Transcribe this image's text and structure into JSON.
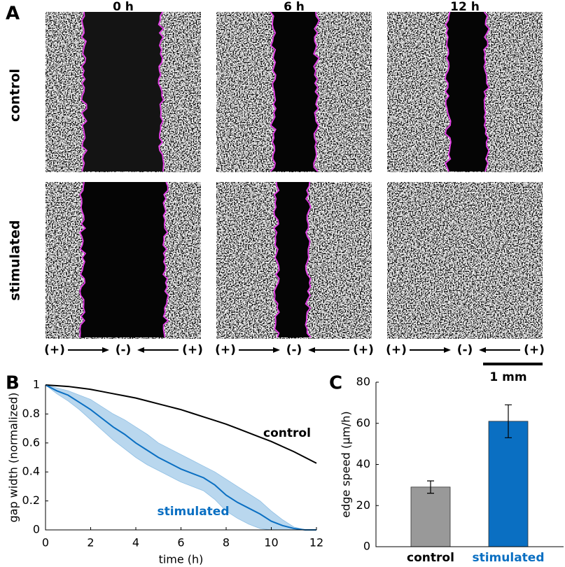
{
  "panel_labels": [
    "A",
    "B",
    "C"
  ],
  "panel_a": {
    "columns": [
      "0 h",
      "6 h",
      "12 h"
    ],
    "rows": [
      "control",
      "stimulated"
    ],
    "arrow_labels": [
      "(+)",
      "(-)",
      "(+)"
    ],
    "scale_bar": "1 mm"
  },
  "chart_data": [
    {
      "type": "line",
      "xlabel": "time (h)",
      "ylabel": "gap width (normalized)",
      "x": [
        0,
        0.5,
        1,
        1.5,
        2,
        2.5,
        3,
        3.5,
        4,
        4.5,
        5,
        5.5,
        6,
        6.5,
        7,
        7.5,
        8,
        8.5,
        9,
        9.5,
        10,
        10.5,
        11,
        11.5,
        12
      ],
      "xlim": [
        0,
        12
      ],
      "xticks": [
        0,
        2,
        4,
        6,
        8,
        10,
        12
      ],
      "ylim": [
        0,
        1
      ],
      "yticks": [
        0,
        0.2,
        0.4,
        0.6,
        0.8,
        1
      ],
      "series": [
        {
          "name": "control",
          "color": "#000000",
          "values": [
            1,
            0.995,
            0.99,
            0.98,
            0.97,
            0.955,
            0.94,
            0.925,
            0.91,
            0.89,
            0.87,
            0.85,
            0.83,
            0.805,
            0.78,
            0.755,
            0.73,
            0.7,
            0.67,
            0.64,
            0.61,
            0.575,
            0.54,
            0.5,
            0.46
          ]
        },
        {
          "name": "stimulated",
          "color": "#0a6fc2",
          "band_color": "#b9d7ee",
          "values": [
            1,
            0.96,
            0.93,
            0.88,
            0.83,
            0.77,
            0.71,
            0.66,
            0.6,
            0.55,
            0.5,
            0.46,
            0.42,
            0.39,
            0.36,
            0.31,
            0.24,
            0.19,
            0.15,
            0.11,
            0.06,
            0.03,
            0.01,
            0,
            0
          ],
          "lower": [
            1,
            0.94,
            0.89,
            0.83,
            0.76,
            0.69,
            0.62,
            0.56,
            0.5,
            0.45,
            0.41,
            0.37,
            0.33,
            0.3,
            0.27,
            0.21,
            0.13,
            0.08,
            0.04,
            0.01,
            0,
            0,
            0,
            0,
            0
          ],
          "upper": [
            1,
            0.98,
            0.96,
            0.93,
            0.9,
            0.85,
            0.8,
            0.76,
            0.71,
            0.66,
            0.6,
            0.56,
            0.52,
            0.48,
            0.44,
            0.4,
            0.35,
            0.3,
            0.25,
            0.2,
            0.13,
            0.07,
            0.02,
            0,
            0
          ]
        }
      ]
    },
    {
      "type": "bar",
      "ylabel": "edge speed (µm/h)",
      "categories": [
        "control",
        "stimulated"
      ],
      "values": [
        29,
        61
      ],
      "errors": [
        3,
        8
      ],
      "colors": [
        "#999999",
        "#0a6fc2"
      ],
      "label_colors": [
        "#000000",
        "#0a6fc2"
      ],
      "ylim": [
        0,
        80
      ],
      "yticks": [
        0,
        20,
        40,
        60,
        80
      ]
    }
  ]
}
